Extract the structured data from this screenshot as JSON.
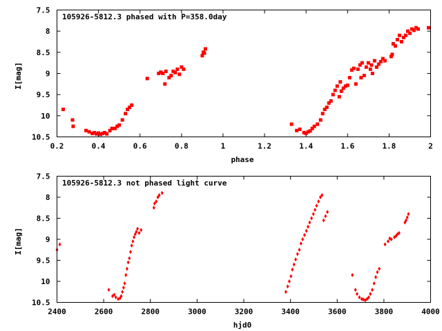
{
  "colors": {
    "points": "#ff0000",
    "axes": "#000000",
    "background": "#ffffff"
  },
  "chart_data": [
    {
      "type": "scatter",
      "title": "105926-5812.3 phased with P=358.0day",
      "xlabel": "phase",
      "ylabel": "I[mag]",
      "xlim": [
        0.2,
        2.0
      ],
      "ylim": [
        10.5,
        7.5
      ],
      "y_inverted": true,
      "marker": "square",
      "xticks": [
        "0.2",
        "0.4",
        "0.6",
        "0.8",
        "1",
        "1.2",
        "1.4",
        "1.6",
        "1.8",
        "2"
      ],
      "yticks": [
        "7.5",
        "8",
        "8.5",
        "9",
        "9.5",
        "10",
        "10.5"
      ],
      "xtick_values": [
        0.2,
        0.4,
        0.6,
        0.8,
        1.0,
        1.2,
        1.4,
        1.6,
        1.8,
        2.0
      ],
      "ytick_values": [
        7.5,
        8.0,
        8.5,
        9.0,
        9.5,
        10.0,
        10.5
      ],
      "grid": false,
      "series": [
        {
          "x": [
            0.23,
            0.275,
            0.278,
            0.34,
            0.355,
            0.37,
            0.38,
            0.39,
            0.4,
            0.41,
            0.42,
            0.43,
            0.44,
            0.455,
            0.465,
            0.48,
            0.49,
            0.5,
            0.515,
            0.53,
            0.54,
            0.55,
            0.56,
            0.635,
            0.69,
            0.7,
            0.71,
            0.72,
            0.725,
            0.74,
            0.75,
            0.76,
            0.77,
            0.78,
            0.79,
            0.8,
            0.81,
            0.9,
            0.905,
            0.91,
            0.915,
            1.33,
            1.355,
            1.37,
            1.39,
            1.4,
            1.41,
            1.42,
            1.43,
            1.44,
            1.455,
            1.47,
            1.48,
            1.49,
            1.5,
            1.51,
            1.52,
            1.53,
            1.54,
            1.55,
            1.56,
            1.565,
            1.57,
            1.58,
            1.59,
            1.6,
            1.61,
            1.62,
            1.63,
            1.64,
            1.65,
            1.66,
            1.665,
            1.67,
            1.68,
            1.69,
            1.7,
            1.71,
            1.715,
            1.72,
            1.73,
            1.74,
            1.75,
            1.76,
            1.77,
            1.78,
            1.81,
            1.815,
            1.82,
            1.83,
            1.84,
            1.85,
            1.86,
            1.87,
            1.88,
            1.89,
            1.9,
            1.91,
            1.92,
            1.93,
            1.94,
            1.99
          ],
          "y": [
            9.85,
            10.1,
            10.25,
            10.35,
            10.38,
            10.42,
            10.4,
            10.43,
            10.41,
            10.44,
            10.42,
            10.4,
            10.43,
            10.35,
            10.3,
            10.3,
            10.25,
            10.22,
            10.1,
            9.95,
            9.85,
            9.8,
            9.75,
            9.12,
            9.0,
            8.97,
            9.0,
            9.25,
            8.95,
            9.1,
            9.05,
            8.95,
            8.98,
            8.9,
            9.02,
            8.85,
            8.9,
            8.58,
            8.5,
            8.52,
            8.42,
            10.2,
            10.35,
            10.32,
            10.4,
            10.42,
            10.38,
            10.36,
            10.3,
            10.25,
            10.2,
            10.1,
            9.95,
            9.85,
            9.8,
            9.7,
            9.65,
            9.5,
            9.4,
            9.3,
            9.55,
            9.2,
            9.42,
            9.35,
            9.3,
            9.28,
            9.1,
            8.92,
            8.88,
            9.25,
            8.9,
            8.8,
            9.1,
            8.75,
            9.05,
            8.85,
            8.75,
            8.9,
            8.8,
            9.0,
            8.7,
            8.85,
            8.78,
            8.72,
            8.65,
            8.7,
            8.6,
            8.55,
            8.3,
            8.35,
            8.2,
            8.1,
            8.25,
            8.15,
            8.1,
            8.0,
            8.05,
            7.95,
            7.98,
            7.92,
            7.95,
            7.92
          ]
        }
      ]
    },
    {
      "type": "scatter",
      "title": "105926-5812.3 not phased light curve",
      "xlabel": "hjd0",
      "ylabel": "I[mag]",
      "xlim": [
        2400,
        4000
      ],
      "ylim": [
        10.5,
        7.5
      ],
      "y_inverted": true,
      "marker": "diamond",
      "xticks": [
        "2400",
        "2600",
        "2800",
        "3000",
        "3200",
        "3400",
        "3600",
        "3800",
        "4000"
      ],
      "yticks": [
        "7.5",
        "8",
        "8.5",
        "9",
        "9.5",
        "10",
        "10.5"
      ],
      "xtick_values": [
        2400,
        2600,
        2800,
        3000,
        3200,
        3400,
        3600,
        3800,
        4000
      ],
      "ytick_values": [
        7.5,
        8.0,
        8.5,
        9.0,
        9.5,
        10.0,
        10.5
      ],
      "grid": false,
      "series": [
        {
          "x": [
            2400,
            2412,
            2622,
            2638,
            2645,
            2652,
            2662,
            2670,
            2675,
            2680,
            2685,
            2690,
            2695,
            2700,
            2705,
            2710,
            2715,
            2720,
            2725,
            2730,
            2735,
            2740,
            2745,
            2752,
            2760,
            2815,
            2818,
            2825,
            2832,
            2838,
            2850,
            3380,
            3388,
            3395,
            3402,
            3408,
            3415,
            3422,
            3430,
            3438,
            3445,
            3452,
            3460,
            3468,
            3475,
            3482,
            3490,
            3498,
            3505,
            3512,
            3520,
            3528,
            3535,
            3542,
            3550,
            3558,
            3665,
            3678,
            3685,
            3695,
            3705,
            3712,
            3720,
            3728,
            3735,
            3742,
            3750,
            3758,
            3765,
            3772,
            3780,
            3805,
            3818,
            3825,
            3832,
            3845,
            3852,
            3858,
            3865,
            3890,
            3895,
            3900,
            3905
          ],
          "y": [
            9.25,
            9.12,
            10.2,
            10.35,
            10.32,
            10.38,
            10.42,
            10.4,
            10.35,
            10.25,
            10.15,
            10.05,
            9.85,
            9.7,
            9.55,
            9.45,
            9.3,
            9.15,
            9.05,
            8.95,
            8.88,
            8.82,
            8.75,
            8.85,
            8.78,
            8.25,
            8.15,
            8.1,
            8.0,
            7.95,
            7.9,
            10.25,
            10.12,
            10.0,
            9.88,
            9.72,
            9.6,
            9.48,
            9.35,
            9.25,
            9.1,
            9.0,
            8.9,
            8.8,
            8.7,
            8.6,
            8.5,
            8.4,
            8.3,
            8.2,
            8.1,
            8.0,
            7.95,
            8.55,
            8.45,
            8.35,
            9.85,
            10.2,
            10.3,
            10.38,
            10.42,
            10.43,
            10.45,
            10.42,
            10.38,
            10.3,
            10.2,
            10.05,
            9.9,
            9.78,
            9.7,
            9.12,
            9.05,
            8.98,
            9.0,
            8.95,
            8.92,
            8.88,
            8.85,
            8.6,
            8.55,
            8.48,
            8.4
          ]
        }
      ]
    }
  ]
}
